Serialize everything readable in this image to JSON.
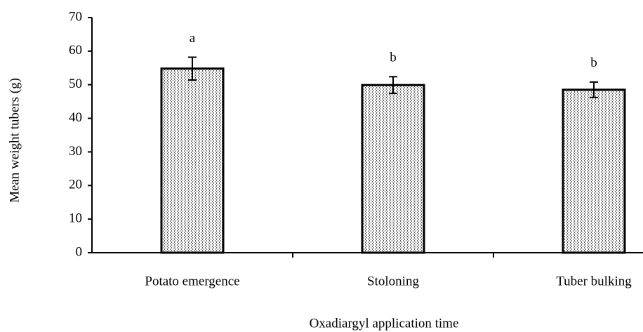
{
  "chart_data": {
    "type": "bar",
    "y_label": "Mean weight tubers (g)",
    "x_label": "Oxadiargyl application time",
    "categories": [
      "Potato emergence",
      "Stoloning",
      "Tuber bulking"
    ],
    "values": [
      54.8,
      49.9,
      48.5
    ],
    "errors": [
      3.4,
      2.5,
      2.3
    ],
    "value_letters": [
      "a",
      "b",
      "b"
    ],
    "color": "#000000",
    "ylim": [
      0,
      70
    ],
    "yticks": [
      0,
      10,
      20,
      30,
      40,
      50,
      60,
      70
    ],
    "grid": false
  }
}
